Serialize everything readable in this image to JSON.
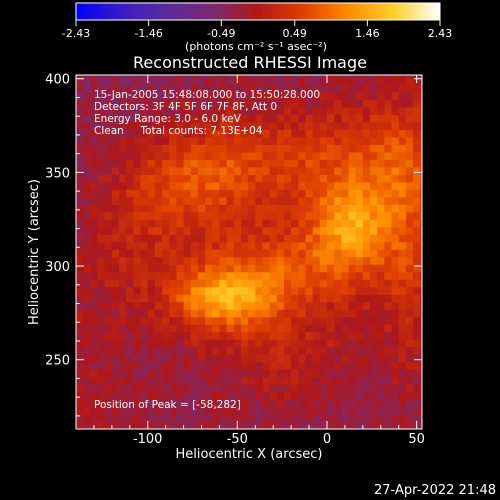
{
  "chart_data": {
    "type": "heatmap",
    "title": "Reconstructed RHESSI Image",
    "xlabel": "Heliocentric X (arcsec)",
    "ylabel": "Heliocentric Y (arcsec)",
    "xlim": [
      -140,
      53
    ],
    "ylim": [
      213,
      402
    ],
    "x_ticks": [
      -100,
      -50,
      0,
      50
    ],
    "y_ticks": [
      250,
      300,
      350,
      400
    ],
    "colorbar": {
      "range": [
        -2.43,
        2.43
      ],
      "ticks": [
        "-2.43",
        "-1.46",
        "-0.49",
        "0.49",
        "1.46",
        "2.43"
      ],
      "unit_label": "(photons cm⁻² s⁻¹ asec⁻²)",
      "colormap": [
        "#0000ff",
        "#3a1cc4",
        "#5a2b9c",
        "#7a2a72",
        "#b01818",
        "#e04000",
        "#ff8c00",
        "#ffd22a",
        "#ffffff"
      ]
    },
    "info_lines": [
      "15-Jan-2005 15:48:08.000 to 15:50:28.000",
      "Detectors: 3F 4F 5F 6F 7F 8F, Att 0",
      "Energy Range: 3.0 - 6.0 keV",
      "Clean     Total counts: 7.13E+04"
    ],
    "peak_label": "Position of Peak = [-58,282]",
    "peak_position": [
      -58,
      282
    ],
    "features": [
      {
        "x": -58,
        "y": 282,
        "sx": 20,
        "sy": 11,
        "amp": 1.35
      },
      {
        "x": -30,
        "y": 298,
        "sx": 30,
        "sy": 14,
        "amp": 0.7
      },
      {
        "x": 12,
        "y": 320,
        "sx": 15,
        "sy": 16,
        "amp": 0.95
      },
      {
        "x": 28,
        "y": 330,
        "sx": 22,
        "sy": 28,
        "amp": 0.55
      },
      {
        "x": 40,
        "y": 360,
        "sx": 18,
        "sy": 20,
        "amp": 0.45
      },
      {
        "x": 45,
        "y": 285,
        "sx": 10,
        "sy": 40,
        "amp": 0.45
      },
      {
        "x": -75,
        "y": 345,
        "sx": 25,
        "sy": 18,
        "amp": 0.7
      },
      {
        "x": -50,
        "y": 360,
        "sx": 30,
        "sy": 18,
        "amp": 0.5
      },
      {
        "x": -110,
        "y": 320,
        "sx": 20,
        "sy": 25,
        "amp": 0.35
      },
      {
        "x": -20,
        "y": 255,
        "sx": 25,
        "sy": 20,
        "amp": 0.35
      },
      {
        "x": -5,
        "y": 360,
        "sx": 20,
        "sy": 20,
        "amp": 0.35
      },
      {
        "x": -100,
        "y": 255,
        "sx": 28,
        "sy": 25,
        "amp": -0.2
      }
    ]
  },
  "footer": {
    "timestamp": "27-Apr-2022 21:48"
  }
}
